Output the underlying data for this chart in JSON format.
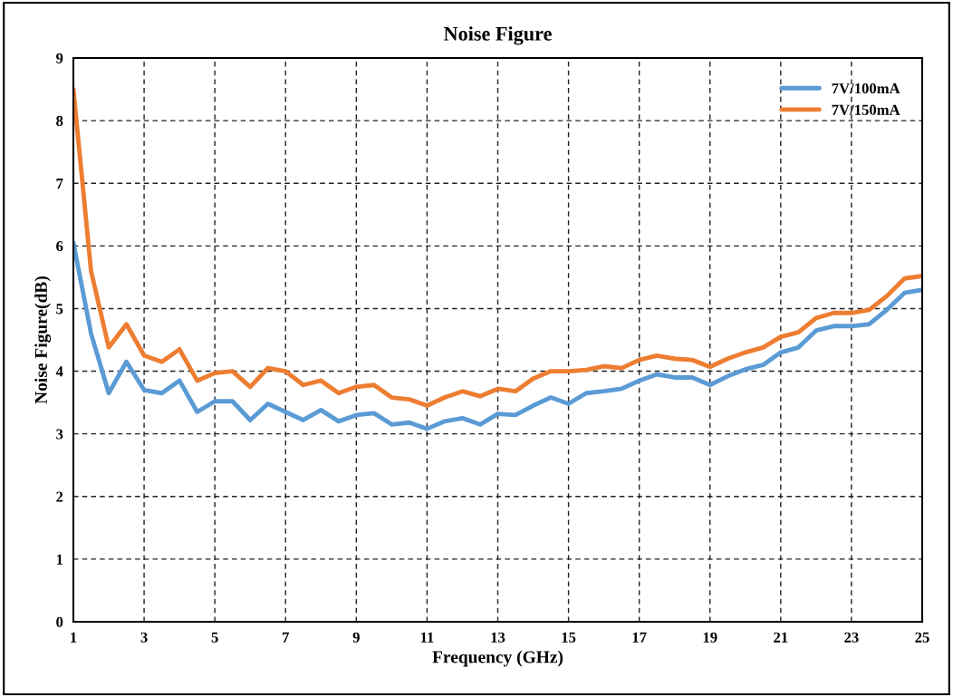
{
  "chart_data": {
    "type": "line",
    "title": "Noise Figure",
    "xlabel": "Frequency (GHz)",
    "ylabel": "Noise Figure(dB)",
    "x": [
      1,
      1.5,
      2,
      2.5,
      3,
      3.5,
      4,
      4.5,
      5,
      5.5,
      6,
      6.5,
      7,
      7.5,
      8,
      8.5,
      9,
      9.5,
      10,
      10.5,
      11,
      11.5,
      12,
      12.5,
      13,
      13.5,
      14,
      14.5,
      15,
      15.5,
      16,
      16.5,
      17,
      17.5,
      18,
      18.5,
      19,
      19.5,
      20,
      20.5,
      21,
      21.5,
      22,
      22.5,
      23,
      23.5,
      24,
      24.5,
      25
    ],
    "series": [
      {
        "name": "7V/100mA",
        "color": "#5b9bd5",
        "values": [
          6.05,
          4.6,
          3.65,
          4.15,
          3.7,
          3.65,
          3.85,
          3.35,
          3.52,
          3.52,
          3.22,
          3.48,
          3.35,
          3.22,
          3.38,
          3.2,
          3.3,
          3.33,
          3.15,
          3.18,
          3.08,
          3.2,
          3.25,
          3.15,
          3.32,
          3.3,
          3.45,
          3.58,
          3.48,
          3.65,
          3.68,
          3.72,
          3.85,
          3.95,
          3.9,
          3.9,
          3.78,
          3.92,
          4.03,
          4.1,
          4.3,
          4.38,
          4.65,
          4.72,
          4.72,
          4.75,
          4.98,
          5.25,
          5.3
        ]
      },
      {
        "name": "7V/150mA",
        "color": "#ed7d31",
        "values": [
          8.5,
          5.6,
          4.38,
          4.75,
          4.25,
          4.15,
          4.35,
          3.85,
          3.97,
          4.0,
          3.75,
          4.05,
          4.0,
          3.78,
          3.85,
          3.65,
          3.75,
          3.78,
          3.58,
          3.55,
          3.45,
          3.58,
          3.68,
          3.6,
          3.72,
          3.68,
          3.88,
          4.0,
          4.0,
          4.02,
          4.08,
          4.05,
          4.18,
          4.25,
          4.2,
          4.18,
          4.07,
          4.2,
          4.3,
          4.38,
          4.55,
          4.62,
          4.85,
          4.93,
          4.93,
          4.98,
          5.2,
          5.48,
          5.52
        ]
      }
    ],
    "xlim": [
      1,
      25
    ],
    "xticks": [
      1,
      3,
      5,
      7,
      9,
      11,
      13,
      15,
      17,
      19,
      21,
      23,
      25
    ],
    "ylim": [
      0,
      9
    ],
    "yticks": [
      0,
      1,
      2,
      3,
      4,
      5,
      6,
      7,
      8,
      9
    ],
    "grid": true,
    "legend": "top right",
    "marker": "none",
    "line_style": "solid"
  }
}
